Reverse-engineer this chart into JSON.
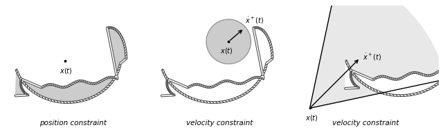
{
  "fig_width": 6.4,
  "fig_height": 1.88,
  "dpi": 100,
  "bg_color": "#ffffff",
  "shape_fill": "#cccccc",
  "shape_fill_light": "#e8e8e8",
  "circle_fill": "#cccccc",
  "label1": "position constraint",
  "label2": "velocity constraint",
  "label3": "velocity constraint",
  "label_fontsize": 7.5,
  "label_fontstyle": "italic"
}
